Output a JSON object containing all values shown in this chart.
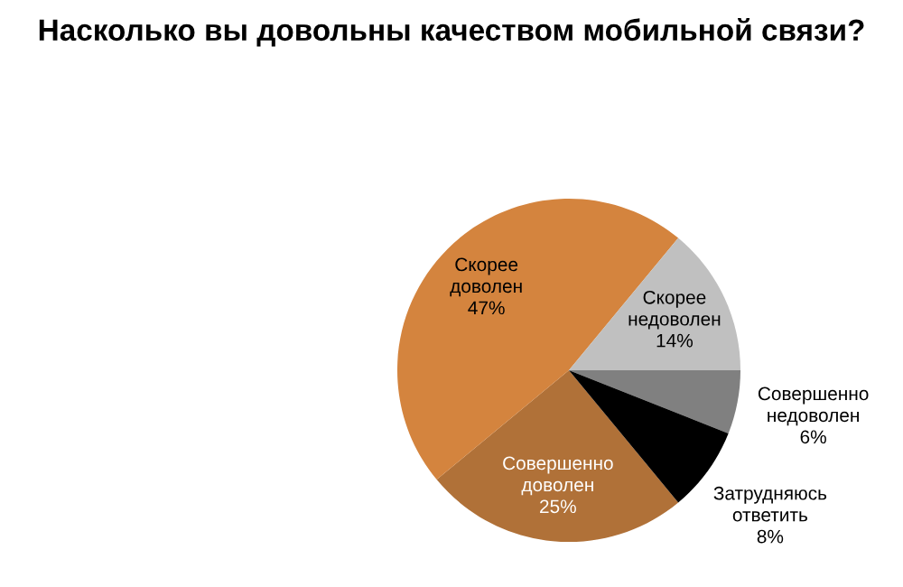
{
  "chart_data": {
    "type": "pie",
    "title": "Насколько вы довольны качеством мобильной связи?",
    "categories": [
      "Совершенно доволен",
      "Скорее доволен",
      "Скорее недоволен",
      "Совершенно недоволен",
      "Затрудняюсь ответить"
    ],
    "values": [
      25,
      47,
      14,
      6,
      8
    ],
    "colors": [
      "#b07138",
      "#d4843e",
      "#c0c0c0",
      "#808080",
      "#000000"
    ],
    "value_labels": [
      "25%",
      "47%",
      "14%",
      "6%",
      "8%"
    ],
    "legend": false
  }
}
